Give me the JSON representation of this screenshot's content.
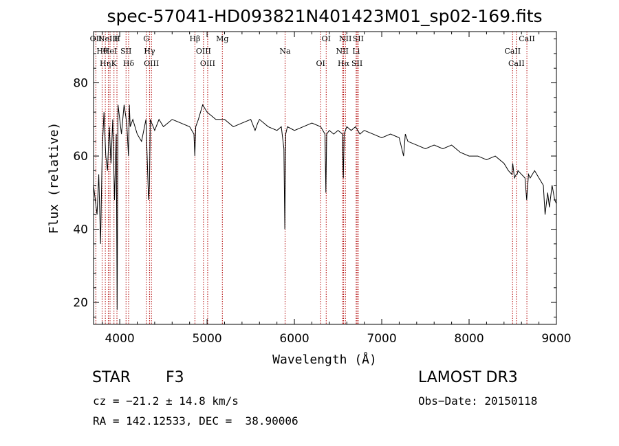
{
  "chart_data": {
    "type": "line",
    "title": "spec-57041-HD093821N401423M01_sp02-169.fits",
    "xlabel": "Wavelength (Å)",
    "ylabel": "Flux (relative)",
    "xlim": [
      3700,
      9000
    ],
    "ylim": [
      14,
      94
    ],
    "xticks": [
      4000,
      5000,
      6000,
      7000,
      8000,
      9000
    ],
    "yticks": [
      20,
      40,
      60,
      80
    ],
    "series": [
      {
        "name": "flux",
        "x": [
          3700,
          3720,
          3740,
          3760,
          3780,
          3800,
          3820,
          3840,
          3860,
          3880,
          3900,
          3920,
          3940,
          3960,
          3970,
          3980,
          4000,
          4020,
          4050,
          4080,
          4100,
          4110,
          4120,
          4150,
          4200,
          4250,
          4300,
          4330,
          4340,
          4350,
          4400,
          4450,
          4500,
          4550,
          4600,
          4700,
          4800,
          4850,
          4860,
          4870,
          4900,
          4950,
          5000,
          5100,
          5200,
          5300,
          5400,
          5500,
          5550,
          5580,
          5600,
          5700,
          5800,
          5850,
          5880,
          5890,
          5900,
          5920,
          6000,
          6100,
          6200,
          6300,
          6350,
          6360,
          6370,
          6400,
          6450,
          6500,
          6550,
          6560,
          6570,
          6600,
          6650,
          6700,
          6750,
          6800,
          6900,
          7000,
          7100,
          7200,
          7250,
          7260,
          7270,
          7300,
          7400,
          7500,
          7600,
          7700,
          7800,
          7900,
          8000,
          8100,
          8200,
          8300,
          8400,
          8450,
          8490,
          8500,
          8520,
          8540,
          8550,
          8560,
          8600,
          8640,
          8660,
          8680,
          8700,
          8750,
          8800,
          8850,
          8870,
          8900,
          8920,
          8950,
          8980,
          9000
        ],
        "y": [
          52,
          48,
          44,
          55,
          36,
          62,
          72,
          60,
          56,
          68,
          58,
          70,
          48,
          66,
          18,
          74,
          70,
          66,
          74,
          69,
          60,
          74,
          68,
          70,
          66,
          64,
          70,
          48,
          52,
          70,
          67,
          70,
          68,
          69,
          70,
          69,
          68,
          66,
          60,
          68,
          70,
          74,
          72,
          70,
          70,
          68,
          69,
          70,
          67,
          69,
          70,
          68,
          67,
          68,
          62,
          40,
          66,
          68,
          67,
          68,
          69,
          68,
          66,
          50,
          66,
          67,
          66,
          67,
          66,
          54,
          66,
          68,
          67,
          68,
          66,
          67,
          66,
          65,
          66,
          65,
          60,
          63,
          66,
          64,
          63,
          62,
          63,
          62,
          63,
          61,
          60,
          60,
          59,
          60,
          58,
          56,
          55,
          58,
          54,
          55,
          55,
          56,
          55,
          54,
          48,
          55,
          54,
          56,
          54,
          52,
          44,
          50,
          46,
          52,
          48,
          47
        ],
        "color": "#000000"
      }
    ],
    "lines": [
      {
        "wl": 3727,
        "label": "OII"
      },
      {
        "wl": 3798,
        "label": "Hθ"
      },
      {
        "wl": 3835,
        "label": "Hη"
      },
      {
        "wl": 3869,
        "label": "NeIII"
      },
      {
        "wl": 3889,
        "label": "HeI"
      },
      {
        "wl": 3934,
        "label": "K"
      },
      {
        "wl": 3968,
        "label": "H"
      },
      {
        "wl": 4072,
        "label": "SII"
      },
      {
        "wl": 4102,
        "label": "Hδ"
      },
      {
        "wl": 4304,
        "label": "G"
      },
      {
        "wl": 4341,
        "label": "Hγ"
      },
      {
        "wl": 4363,
        "label": "OIII"
      },
      {
        "wl": 4861,
        "label": "Hβ"
      },
      {
        "wl": 4959,
        "label": "OIII"
      },
      {
        "wl": 5007,
        "label": "OIII"
      },
      {
        "wl": 5175,
        "label": "Mg"
      },
      {
        "wl": 5893,
        "label": "Na"
      },
      {
        "wl": 6300,
        "label": "OI"
      },
      {
        "wl": 6364,
        "label": "OI"
      },
      {
        "wl": 6548,
        "label": "NII"
      },
      {
        "wl": 6563,
        "label": "Hα"
      },
      {
        "wl": 6584,
        "label": "NII"
      },
      {
        "wl": 6707,
        "label": "Li"
      },
      {
        "wl": 6717,
        "label": "SII"
      },
      {
        "wl": 6731,
        "label": "SII"
      },
      {
        "wl": 8498,
        "label": "CaII"
      },
      {
        "wl": 8542,
        "label": "CaII"
      },
      {
        "wl": 8662,
        "label": "CaII"
      }
    ]
  },
  "info": {
    "class": "STAR",
    "subclass": "F3",
    "survey": "LAMOST DR3",
    "cz": "cz = −21.2 ± 14.8 km/s",
    "obs_date": "Obs−Date: 20150118",
    "radec": "RA = 142.12533, DEC =  38.90006"
  }
}
